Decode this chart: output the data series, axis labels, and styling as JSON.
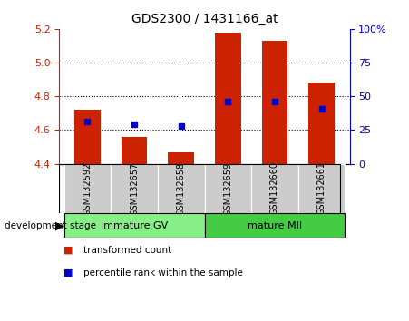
{
  "title": "GDS2300 / 1431166_at",
  "samples": [
    "GSM132592",
    "GSM132657",
    "GSM132658",
    "GSM132659",
    "GSM132660",
    "GSM132661"
  ],
  "bar_values": [
    4.72,
    4.56,
    4.47,
    5.18,
    5.13,
    4.88
  ],
  "blue_values": [
    4.65,
    4.635,
    4.625,
    4.77,
    4.77,
    4.725
  ],
  "bar_color": "#cc2200",
  "blue_color": "#0000cc",
  "baseline": 4.4,
  "ylim_left": [
    4.4,
    5.2
  ],
  "ylim_right": [
    0,
    100
  ],
  "yticks_left": [
    4.4,
    4.6,
    4.8,
    5.0,
    5.2
  ],
  "yticks_right": [
    0,
    25,
    50,
    75,
    100
  ],
  "ytick_labels_right": [
    "0",
    "25",
    "50",
    "75",
    "100%"
  ],
  "grid_values": [
    4.6,
    4.8,
    5.0
  ],
  "groups": [
    {
      "label": "immature GV",
      "start": 0,
      "end": 2,
      "color": "#88ee88"
    },
    {
      "label": "mature MII",
      "start": 3,
      "end": 5,
      "color": "#44cc44"
    }
  ],
  "stage_label": "development stage",
  "legend_items": [
    {
      "label": "transformed count",
      "color": "#cc2200"
    },
    {
      "label": "percentile rank within the sample",
      "color": "#0000cc"
    }
  ],
  "bar_width": 0.55,
  "left_tick_color": "#cc2200",
  "right_tick_color": "#0000cc",
  "xlabel_bg": "#cccccc",
  "plot_bg": "#ffffff"
}
